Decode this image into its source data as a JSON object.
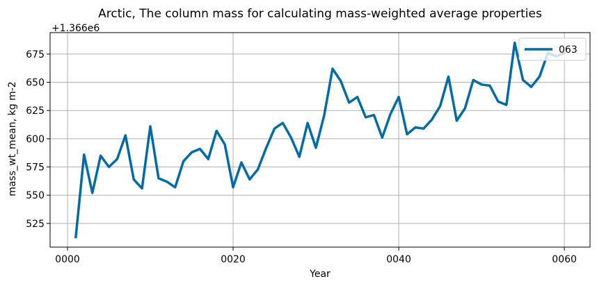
{
  "chart_data": {
    "type": "line",
    "title": "Arctic, The column mass for calculating mass-weighted average properties",
    "xlabel": "Year",
    "ylabel": "mass_wt_mean, kg m-2",
    "y_offset_label": "+1.366e6",
    "xlim": [
      -2.1,
      63.1
    ],
    "ylim": [
      504,
      694
    ],
    "x_ticks": [
      0,
      20,
      40,
      60
    ],
    "x_tick_labels": [
      "0000",
      "0020",
      "0040",
      "0060"
    ],
    "y_ticks": [
      525,
      550,
      575,
      600,
      625,
      650,
      675
    ],
    "y_tick_labels": [
      "525",
      "550",
      "575",
      "600",
      "625",
      "650",
      "675"
    ],
    "grid": true,
    "legend_position": "top-right",
    "colors": {
      "series": "#006ba4"
    },
    "series": [
      {
        "name": "063",
        "x": [
          1,
          2,
          3,
          4,
          5,
          6,
          7,
          8,
          9,
          10,
          11,
          12,
          13,
          14,
          15,
          16,
          17,
          18,
          19,
          20,
          21,
          22,
          23,
          24,
          25,
          26,
          27,
          28,
          29,
          30,
          31,
          32,
          33,
          34,
          35,
          36,
          37,
          38,
          39,
          40,
          41,
          42,
          43,
          44,
          45,
          46,
          47,
          48,
          49,
          50,
          51,
          52,
          53,
          54,
          55,
          56,
          57,
          58,
          59,
          60
        ],
        "values": [
          513,
          586,
          552,
          585,
          575,
          582,
          603,
          564,
          556,
          611,
          565,
          562,
          557,
          580,
          588,
          591,
          582,
          607,
          595,
          557,
          579,
          564,
          573,
          592,
          609,
          614,
          601,
          584,
          614,
          592,
          621,
          662,
          651,
          632,
          637,
          619,
          621,
          601,
          622,
          637,
          604,
          610,
          609,
          617,
          629,
          655,
          616,
          627,
          652,
          648,
          647,
          633,
          630,
          685,
          652,
          646,
          655,
          676,
          673,
          676
        ]
      }
    ]
  }
}
